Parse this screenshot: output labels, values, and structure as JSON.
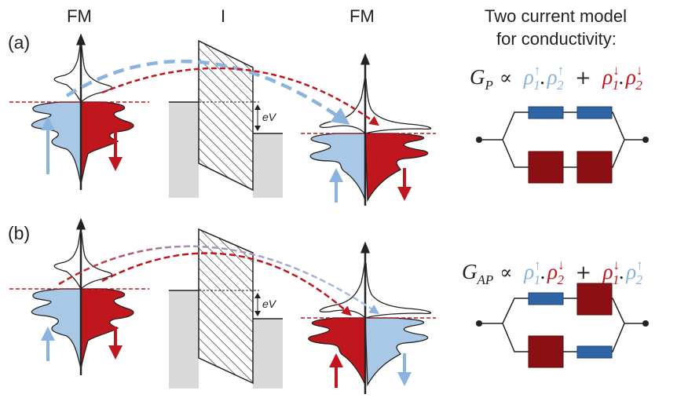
{
  "headers": {
    "left": "FM",
    "middle": "I",
    "right": "FM"
  },
  "model_title": {
    "line1": "Two current model",
    "line2": "for conductivity:"
  },
  "panels": {
    "a": "(a)",
    "b": "(b)"
  },
  "bias_label": "eV",
  "equations": {
    "parallel": {
      "lhs": "G",
      "lhs_sub": "P",
      "prop": "∝",
      "t1a": "ρ",
      "t1a_sub": "1",
      "t1a_sup": "↑",
      "dot1": ".",
      "t1b": "ρ",
      "t1b_sub": "2",
      "t1b_sup": "↑",
      "plus": "+",
      "t2a": "ρ",
      "t2a_sub": "1",
      "t2a_sup": "↓",
      "dot2": ".",
      "t2b": "ρ",
      "t2b_sub": "2",
      "t2b_sup": "↓"
    },
    "antiparallel": {
      "lhs": "G",
      "lhs_sub": "AP",
      "prop": "∝",
      "t1a": "ρ",
      "t1a_sub": "1",
      "t1a_sup": "↑",
      "dot1": ".",
      "t1b": "ρ",
      "t1b_sub": "2",
      "t1b_sup": "↓",
      "plus": "+",
      "t2a": "ρ",
      "t2a_sub": "1",
      "t2a_sup": "↓",
      "dot2": ".",
      "t2b": "ρ",
      "t2b_sub": "2",
      "t2b_sup": "↑"
    }
  },
  "colors": {
    "spin_up": "#8ab3dd",
    "spin_down": "#c0161d",
    "resistor_blue": "#2f64a5",
    "resistor_red": "#8c0f14",
    "barrier_gray": "#d9d9d9"
  }
}
